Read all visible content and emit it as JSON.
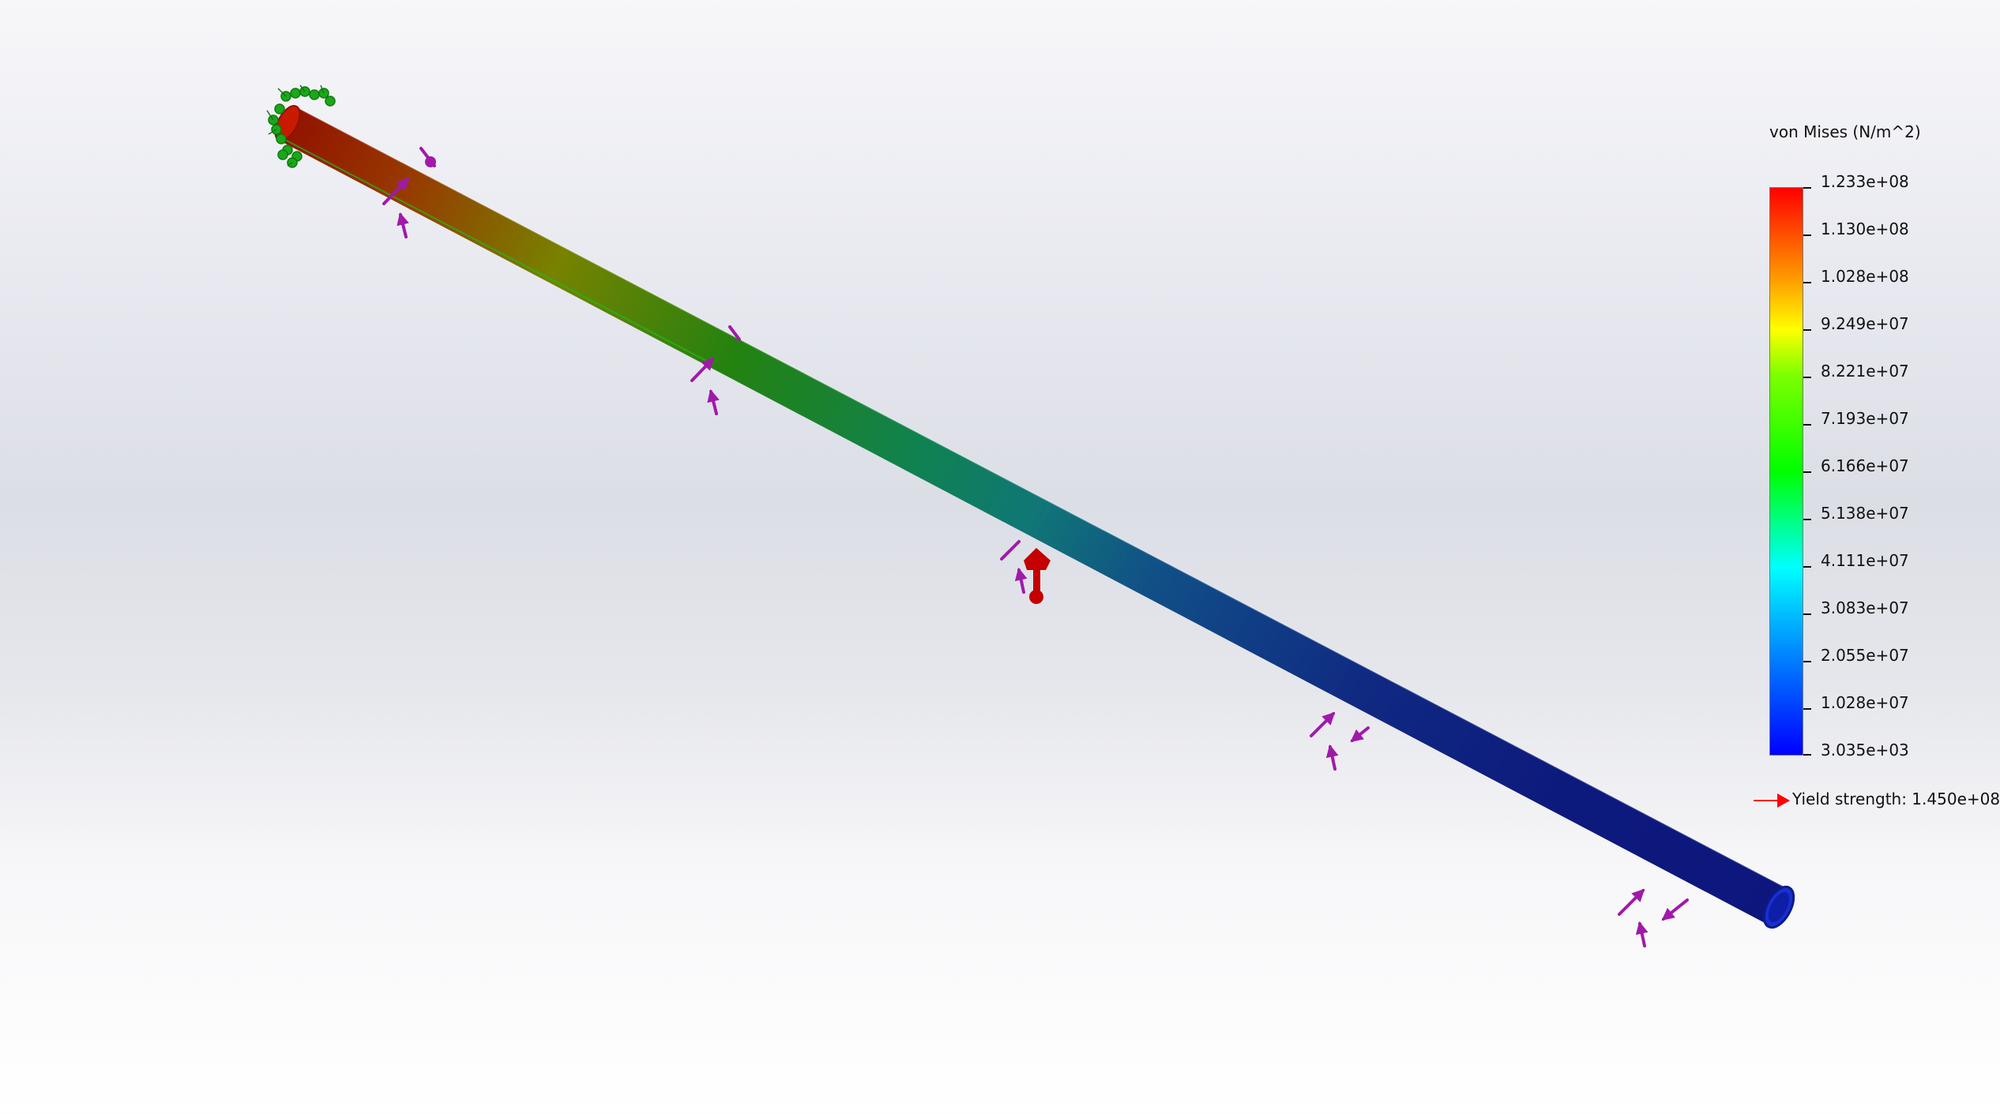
{
  "legend": {
    "title": "von Mises (N/m^2)",
    "ticks": [
      "1.233e+08",
      "1.130e+08",
      "1.028e+08",
      "9.249e+07",
      "8.221e+07",
      "7.193e+07",
      "6.166e+07",
      "5.138e+07",
      "4.111e+07",
      "3.083e+07",
      "2.055e+07",
      "1.028e+07",
      "3.035e+03"
    ],
    "yield_strength": "Yield strength: 1.450e+08"
  },
  "colors": {
    "fixture_arrows": "#1aa81a",
    "load_arrows": "#a01aa8",
    "point_load": "#c40000",
    "yield_marker": "#ff0000"
  },
  "icons": {
    "fixture": "fixed-geometry-icon",
    "load": "force-arrow-icon",
    "point_load": "remote-load-icon"
  }
}
